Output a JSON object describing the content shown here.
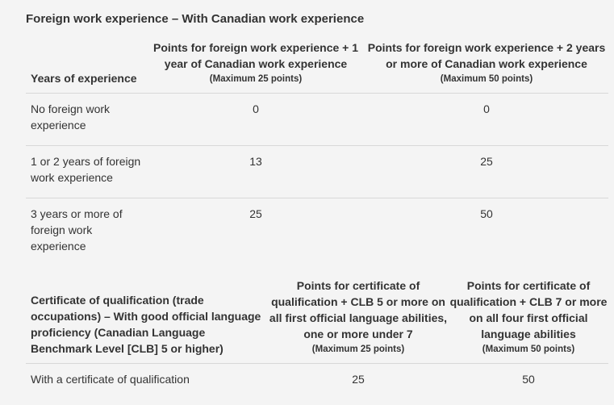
{
  "section_title": "Foreign work experience – With Canadian work experience",
  "table1": {
    "headers": {
      "years": "Years of experience",
      "col1_title": "Points for foreign work experience + 1 year of Canadian work experience",
      "col1_max": "(Maximum 25 points)",
      "col2_title": "Points for foreign work experience + 2 years or more of Canadian work experience",
      "col2_max": "(Maximum 50 points)"
    },
    "rows": [
      {
        "label": "No foreign work experience",
        "p1": "0",
        "p2": "0"
      },
      {
        "label": "1 or 2 years of foreign work experience",
        "p1": "13",
        "p2": "25"
      },
      {
        "label": "3 years or more of foreign work experience",
        "p1": "25",
        "p2": "50"
      }
    ]
  },
  "table2": {
    "headers": {
      "certificate": "Certificate of qualification (trade occupations) – With good official language proficiency (Canadian Language Benchmark Level [CLB] 5 or higher)",
      "col1_title": "Points for certificate of qualification + CLB 5 or more on all first official language abilities, one or more under 7",
      "col1_max": "(Maximum 25 points)",
      "col2_title": "Points for certificate of qualification + CLB 7 or more on all four first official language abilities",
      "col2_max": "(Maximum 50 points)"
    },
    "rows": [
      {
        "label": "With a certificate of qualification",
        "p1": "25",
        "p2": "50"
      }
    ]
  }
}
